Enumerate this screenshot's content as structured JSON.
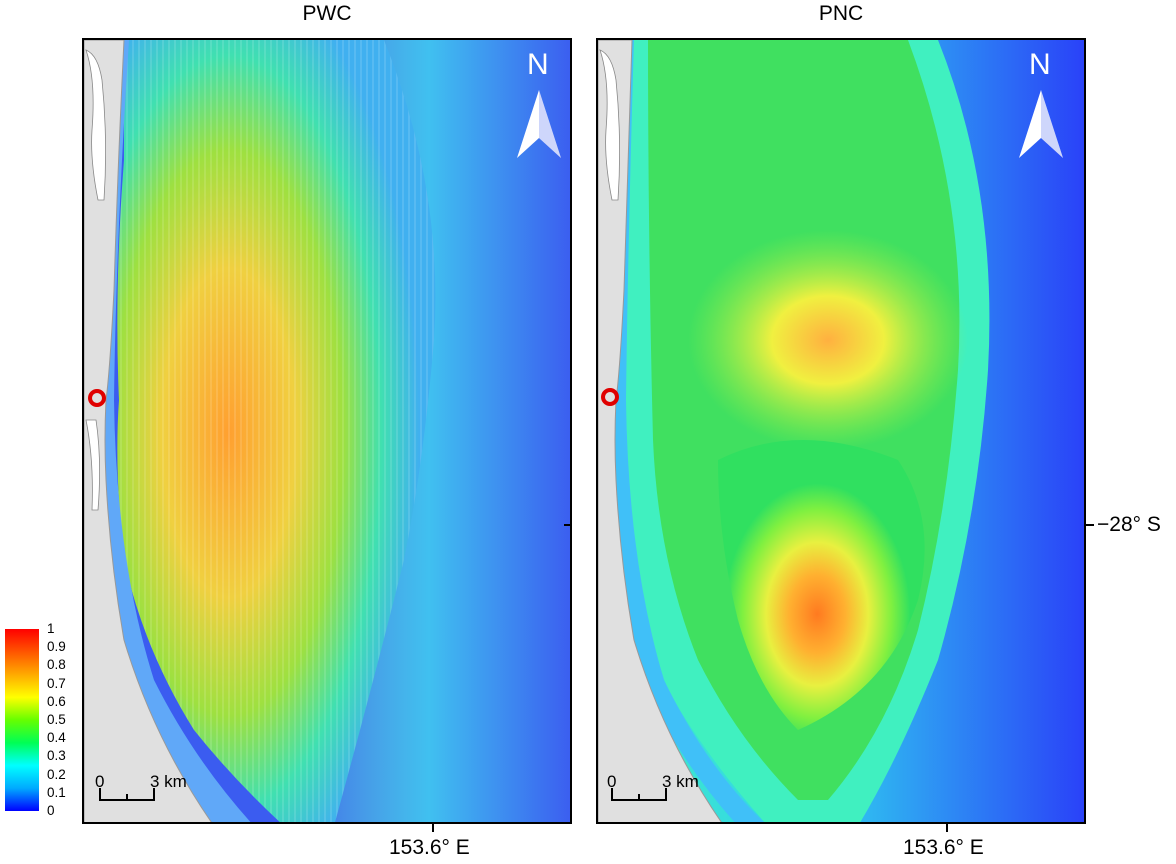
{
  "panels": [
    {
      "title": "PWC",
      "north_label": "N",
      "scale": {
        "zero": "0",
        "end": "3 km"
      },
      "x_tick_label": "153.6° E"
    },
    {
      "title": "PNC",
      "north_label": "N",
      "scale": {
        "zero": "0",
        "end": "3 km"
      },
      "x_tick_label": "153.6° E"
    }
  ],
  "y_tick_label": "−28° S",
  "legend": {
    "labels": [
      "1",
      "0.9",
      "0.8",
      "0.7",
      "0.6",
      "0.5",
      "0.4",
      "0.3",
      "0.2",
      "0.1",
      "0"
    ],
    "min": 0,
    "max": 1,
    "colors": [
      "#0000ff",
      "#00aaff",
      "#00ffff",
      "#00ff55",
      "#66ff00",
      "#ffff00",
      "#ffaa00",
      "#ff5500",
      "#ff0000"
    ]
  },
  "colors": {
    "ocean_low": "#3b5cf0",
    "land": "#e0e0e0",
    "marker": "#e00000"
  }
}
